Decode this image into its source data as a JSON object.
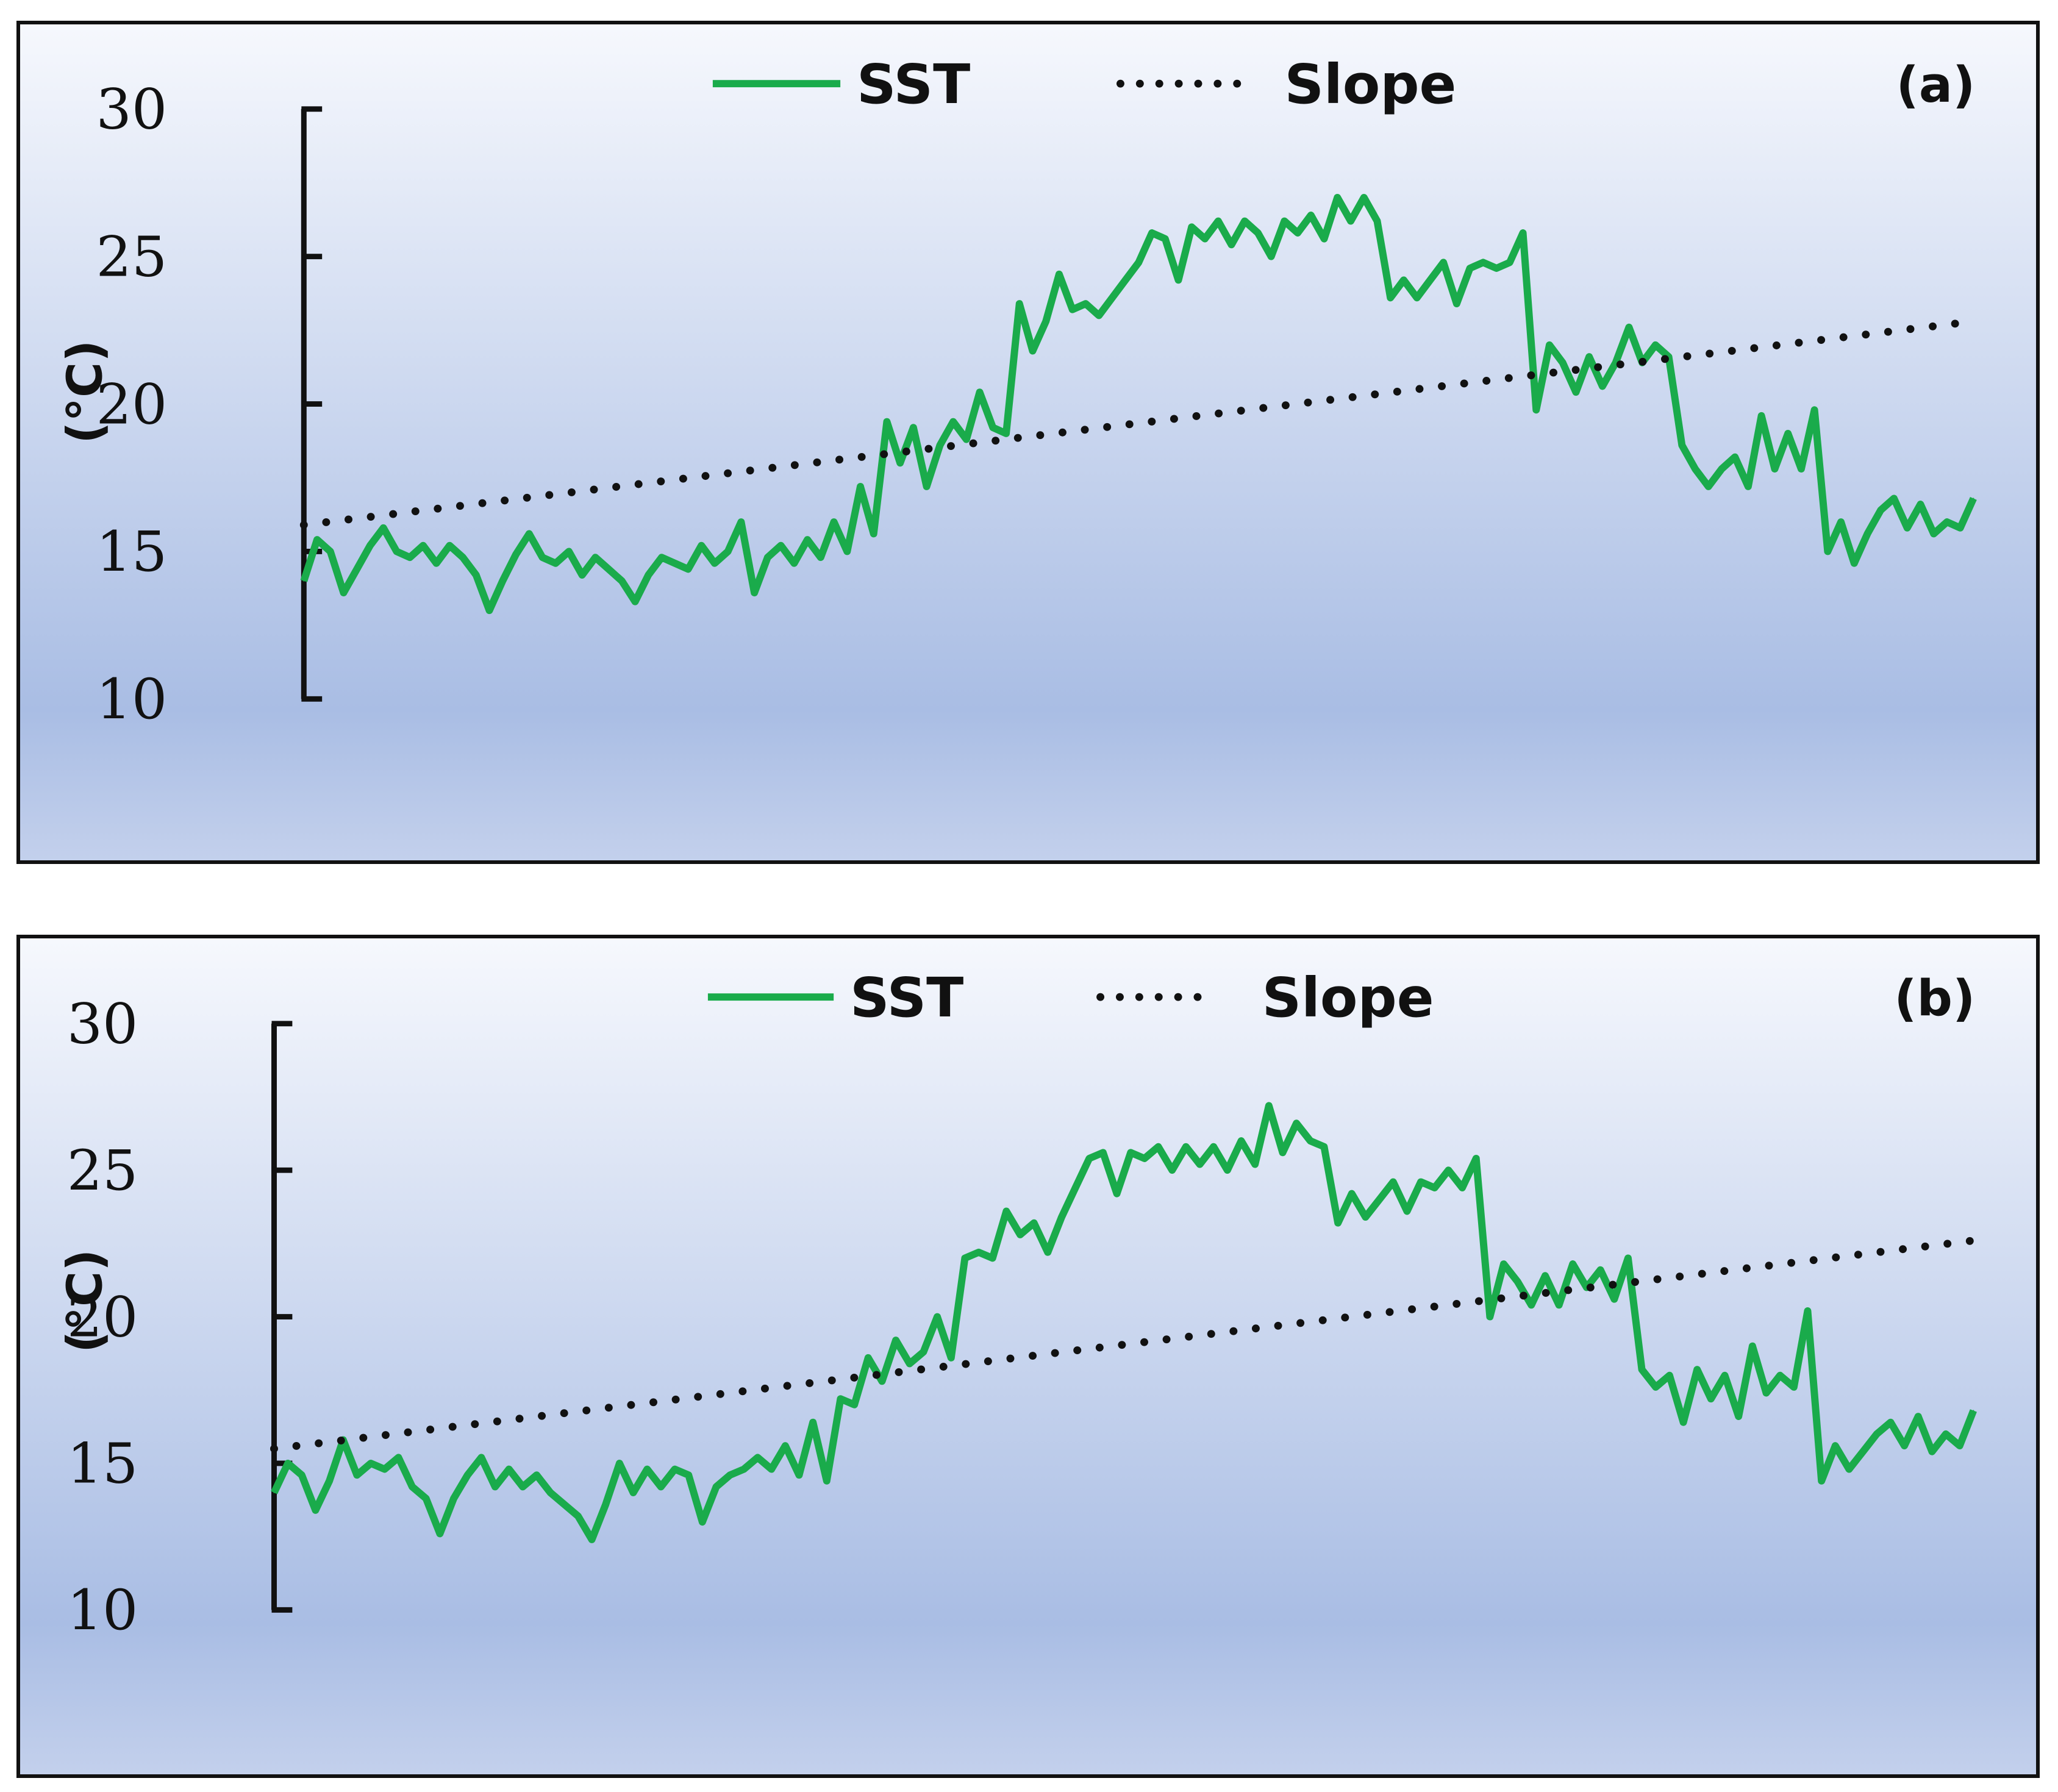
{
  "chart_data": [
    {
      "type": "line",
      "panel_label": "(a)",
      "ylabel": "(°C)",
      "ylim": [
        10,
        30
      ],
      "yticks": [
        10,
        15,
        20,
        25,
        30
      ],
      "legend": {
        "placement": "top-center",
        "items": [
          "SST",
          "Slope"
        ]
      },
      "grid": false,
      "colors": {
        "SST": "#1aab4b",
        "Slope": "#111111"
      },
      "series": [
        {
          "name": "SST",
          "style": "solid",
          "values": [
            14.0,
            15.4,
            15.0,
            13.6,
            14.4,
            15.2,
            15.8,
            15.0,
            14.8,
            15.2,
            14.6,
            15.2,
            14.8,
            14.2,
            13.0,
            14.0,
            14.9,
            15.6,
            14.8,
            14.6,
            15.0,
            14.2,
            14.8,
            14.4,
            14.0,
            13.3,
            14.2,
            14.8,
            14.6,
            14.4,
            15.2,
            14.6,
            15.0,
            16.0,
            13.6,
            14.8,
            15.2,
            14.6,
            15.4,
            14.8,
            16.0,
            15.0,
            17.2,
            15.6,
            19.4,
            18.0,
            19.2,
            17.2,
            18.6,
            19.4,
            18.8,
            20.4,
            19.2,
            19.0,
            23.4,
            21.8,
            22.8,
            24.4,
            23.2,
            23.4,
            23.0,
            23.6,
            24.2,
            24.8,
            25.8,
            25.6,
            24.2,
            26.0,
            25.6,
            26.2,
            25.4,
            26.2,
            25.8,
            25.0,
            26.2,
            25.8,
            26.4,
            25.6,
            27.0,
            26.2,
            27.0,
            26.2,
            23.6,
            24.2,
            23.6,
            24.2,
            24.8,
            23.4,
            24.6,
            24.8,
            24.6,
            24.8,
            25.8,
            19.8,
            22.0,
            21.4,
            20.4,
            21.6,
            20.6,
            21.4,
            22.6,
            21.4,
            22.0,
            21.6,
            18.6,
            17.8,
            17.2,
            17.8,
            18.2,
            17.2,
            19.6,
            17.8,
            19.0,
            17.8,
            19.8,
            15.0,
            16.0,
            14.6,
            15.6,
            16.4,
            16.8,
            15.8,
            16.6,
            15.6,
            16.0,
            15.8,
            16.8
          ]
        },
        {
          "name": "Slope",
          "style": "dotted",
          "values": [
            15.9,
            22.8
          ]
        }
      ]
    },
    {
      "type": "line",
      "panel_label": "(b)",
      "ylabel": "(°C)",
      "ylim": [
        10,
        30
      ],
      "yticks": [
        10,
        15,
        20,
        25,
        30
      ],
      "legend": {
        "placement": "top-center",
        "items": [
          "SST",
          "Slope"
        ]
      },
      "grid": false,
      "colors": {
        "SST": "#1aab4b",
        "Slope": "#111111"
      },
      "series": [
        {
          "name": "SST",
          "style": "solid",
          "values": [
            14.0,
            15.0,
            14.6,
            13.4,
            14.4,
            15.8,
            14.6,
            15.0,
            14.8,
            15.2,
            14.2,
            13.8,
            12.6,
            13.8,
            14.6,
            15.2,
            14.2,
            14.8,
            14.2,
            14.6,
            14.0,
            13.6,
            13.2,
            12.4,
            13.6,
            15.0,
            14.0,
            14.8,
            14.2,
            14.8,
            14.6,
            13.0,
            14.2,
            14.6,
            14.8,
            15.2,
            14.8,
            15.6,
            14.6,
            16.4,
            14.4,
            17.2,
            17.0,
            18.6,
            17.8,
            19.2,
            18.4,
            18.8,
            20.0,
            18.6,
            22.0,
            22.2,
            22.0,
            23.6,
            22.8,
            23.2,
            22.2,
            23.4,
            24.4,
            25.4,
            25.6,
            24.2,
            25.6,
            25.4,
            25.8,
            25.0,
            25.8,
            25.2,
            25.8,
            25.0,
            26.0,
            25.2,
            27.2,
            25.6,
            26.6,
            26.0,
            25.8,
            23.2,
            24.2,
            23.4,
            24.0,
            24.6,
            23.6,
            24.6,
            24.4,
            25.0,
            24.4,
            25.4,
            20.0,
            21.8,
            21.2,
            20.4,
            21.4,
            20.4,
            21.8,
            21.0,
            21.6,
            20.6,
            22.0,
            18.2,
            17.6,
            18.0,
            16.4,
            18.2,
            17.2,
            18.0,
            16.6,
            19.0,
            17.4,
            18.0,
            17.6,
            20.2,
            14.4,
            15.6,
            14.8,
            15.4,
            16.0,
            16.4,
            15.6,
            16.6,
            15.4,
            16.0,
            15.6,
            16.8
          ]
        },
        {
          "name": "Slope",
          "style": "dotted",
          "values": [
            15.5,
            22.6
          ]
        }
      ]
    }
  ]
}
